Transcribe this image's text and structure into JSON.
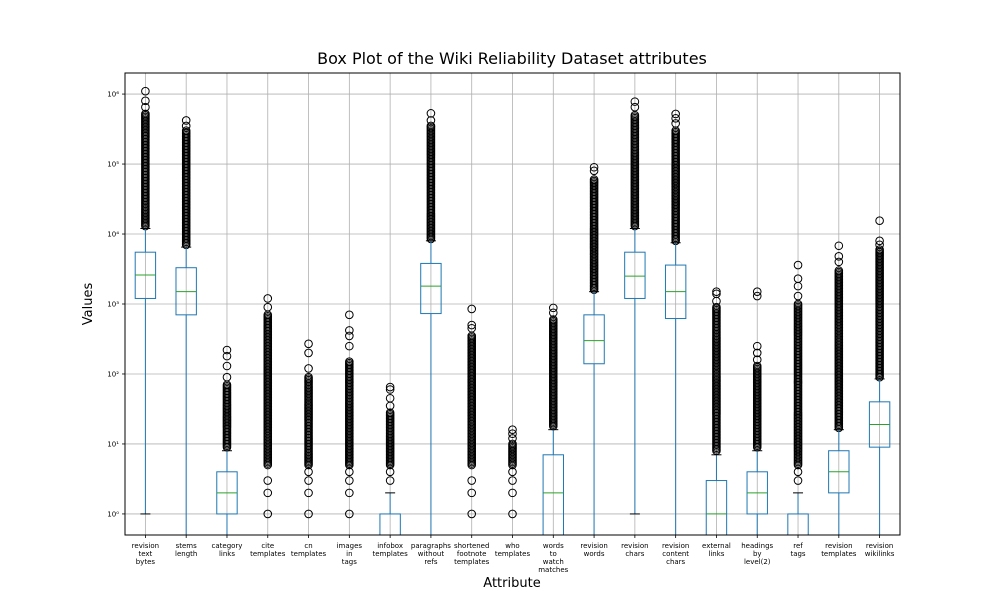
{
  "chart_data": {
    "type": "box",
    "title": "Box Plot of the Wiki Reliability Dataset attributes",
    "xlabel": "Attribute",
    "ylabel": "Values",
    "yscale": "log",
    "ylim": [
      0.5,
      2000000
    ],
    "grid": true,
    "y_ticks": [
      {
        "value": 1,
        "label": "10⁰"
      },
      {
        "value": 10,
        "label": "10¹"
      },
      {
        "value": 100,
        "label": "10²"
      },
      {
        "value": 1000,
        "label": "10³"
      },
      {
        "value": 10000,
        "label": "10⁴"
      },
      {
        "value": 100000,
        "label": "10⁵"
      },
      {
        "value": 1000000,
        "label": "10⁶"
      }
    ],
    "colors": {
      "box": "#1f77b4",
      "median": "#2ca02c",
      "flier": "#000000",
      "grid": "#b0b0b0"
    },
    "boxes": [
      {
        "label": [
          "revision",
          "text",
          "bytes"
        ],
        "q1": 1200,
        "median": 2600,
        "q3": 5500,
        "whisker_low": 1,
        "whisker_high": 12000,
        "flier_low": 13000,
        "flier_high": 520000,
        "extra_fliers": [
          650000,
          800000,
          1100000
        ]
      },
      {
        "label": [
          "stems",
          "length"
        ],
        "q1": 700,
        "median": 1500,
        "q3": 3300,
        "whisker_low": 0.5,
        "whisker_high": 6500,
        "flier_low": 7000,
        "flier_high": 300000,
        "extra_fliers": [
          350000,
          420000
        ]
      },
      {
        "label": [
          "category",
          "links"
        ],
        "q1": 1,
        "median": 2,
        "q3": 4,
        "whisker_low": 0.5,
        "whisker_high": 8,
        "flier_low": 9,
        "flier_high": 70,
        "extra_fliers": [
          90,
          130,
          180,
          220
        ]
      },
      {
        "label": [
          "cite",
          "templates"
        ],
        "q1": 0.5,
        "median": 0.5,
        "q3": 0.5,
        "whisker_low": 0.5,
        "whisker_high": 0.5,
        "flier_low": 5,
        "flier_high": 700,
        "extra_fliers": [
          1,
          2,
          3,
          900,
          1200
        ]
      },
      {
        "label": [
          "cn",
          "templates"
        ],
        "q1": 0.5,
        "median": 0.5,
        "q3": 0.5,
        "whisker_low": 0.5,
        "whisker_high": 0.5,
        "flier_low": 5,
        "flier_high": 90,
        "extra_fliers": [
          1,
          2,
          3,
          4,
          120,
          200,
          270
        ]
      },
      {
        "label": [
          "images",
          "in",
          "tags"
        ],
        "q1": 0.5,
        "median": 0.5,
        "q3": 0.5,
        "whisker_low": 0.5,
        "whisker_high": 0.5,
        "flier_low": 5,
        "flier_high": 150,
        "extra_fliers": [
          1,
          2,
          3,
          4,
          250,
          350,
          420,
          700
        ]
      },
      {
        "label": [
          "infobox",
          "templates"
        ],
        "q1": 0.5,
        "median": 0.5,
        "q3": 1,
        "whisker_low": 0.5,
        "whisker_high": 2,
        "flier_low": 5,
        "flier_high": 28,
        "extra_fliers": [
          3,
          4,
          35,
          45,
          60,
          65
        ]
      },
      {
        "label": [
          "paragraphs",
          "without",
          "refs"
        ],
        "q1": 730,
        "median": 1800,
        "q3": 3800,
        "whisker_low": 0.5,
        "whisker_high": 8000,
        "flier_low": 8500,
        "flier_high": 350000,
        "extra_fliers": [
          420000,
          530000
        ]
      },
      {
        "label": [
          "shortened",
          "footnote",
          "templates"
        ],
        "q1": 0.5,
        "median": 0.5,
        "q3": 0.5,
        "whisker_low": 0.5,
        "whisker_high": 0.5,
        "flier_low": 5,
        "flier_high": 350,
        "extra_fliers": [
          1,
          2,
          3,
          450,
          500,
          850
        ]
      },
      {
        "label": [
          "who",
          "templates"
        ],
        "q1": 0.5,
        "median": 0.5,
        "q3": 0.5,
        "whisker_low": 0.5,
        "whisker_high": 0.5,
        "flier_low": 5,
        "flier_high": 10,
        "extra_fliers": [
          1,
          2,
          3,
          4,
          12,
          14,
          16
        ]
      },
      {
        "label": [
          "words",
          "to",
          "watch",
          "matches"
        ],
        "q1": 0.5,
        "median": 2,
        "q3": 7,
        "whisker_low": 0.5,
        "whisker_high": 16,
        "flier_low": 18,
        "flier_high": 600,
        "extra_fliers": [
          750,
          880
        ]
      },
      {
        "label": [
          "revision",
          "words"
        ],
        "q1": 140,
        "median": 300,
        "q3": 700,
        "whisker_low": 0.5,
        "whisker_high": 1500,
        "flier_low": 1600,
        "flier_high": 60000,
        "extra_fliers": [
          80000,
          90000
        ]
      },
      {
        "label": [
          "revision",
          "chars"
        ],
        "q1": 1200,
        "median": 2500,
        "q3": 5500,
        "whisker_low": 1,
        "whisker_high": 12000,
        "flier_low": 13000,
        "flier_high": 500000,
        "extra_fliers": [
          650000,
          780000
        ]
      },
      {
        "label": [
          "revision",
          "content",
          "chars"
        ],
        "q1": 620,
        "median": 1500,
        "q3": 3600,
        "whisker_low": 0.5,
        "whisker_high": 7500,
        "flier_low": 8000,
        "flier_high": 300000,
        "extra_fliers": [
          380000,
          450000,
          520000
        ]
      },
      {
        "label": [
          "external",
          "links"
        ],
        "q1": 0.5,
        "median": 1,
        "q3": 3,
        "whisker_low": 0.5,
        "whisker_high": 7,
        "flier_low": 8,
        "flier_high": 900,
        "extra_fliers": [
          1100,
          1400,
          1500
        ]
      },
      {
        "label": [
          "headings",
          "by",
          "level(2)"
        ],
        "q1": 1,
        "median": 2,
        "q3": 4,
        "whisker_low": 0.5,
        "whisker_high": 8,
        "flier_low": 9,
        "flier_high": 130,
        "extra_fliers": [
          160,
          200,
          250,
          1300,
          1500
        ]
      },
      {
        "label": [
          "ref",
          "tags"
        ],
        "q1": 0.5,
        "median": 0.5,
        "q3": 1,
        "whisker_low": 0.5,
        "whisker_high": 2,
        "flier_low": 5,
        "flier_high": 1000,
        "extra_fliers": [
          3,
          4,
          1300,
          1800,
          2300,
          3600
        ]
      },
      {
        "label": [
          "revision",
          "templates"
        ],
        "q1": 2,
        "median": 4,
        "q3": 8,
        "whisker_low": 0.5,
        "whisker_high": 16,
        "flier_low": 17,
        "flier_high": 3000,
        "extra_fliers": [
          4000,
          4800,
          6800
        ]
      },
      {
        "label": [
          "revision",
          "wikilinks"
        ],
        "q1": 9,
        "median": 19,
        "q3": 40,
        "whisker_low": 0.5,
        "whisker_high": 85,
        "flier_low": 90,
        "flier_high": 6000,
        "extra_fliers": [
          7000,
          8000,
          15500
        ]
      }
    ]
  }
}
